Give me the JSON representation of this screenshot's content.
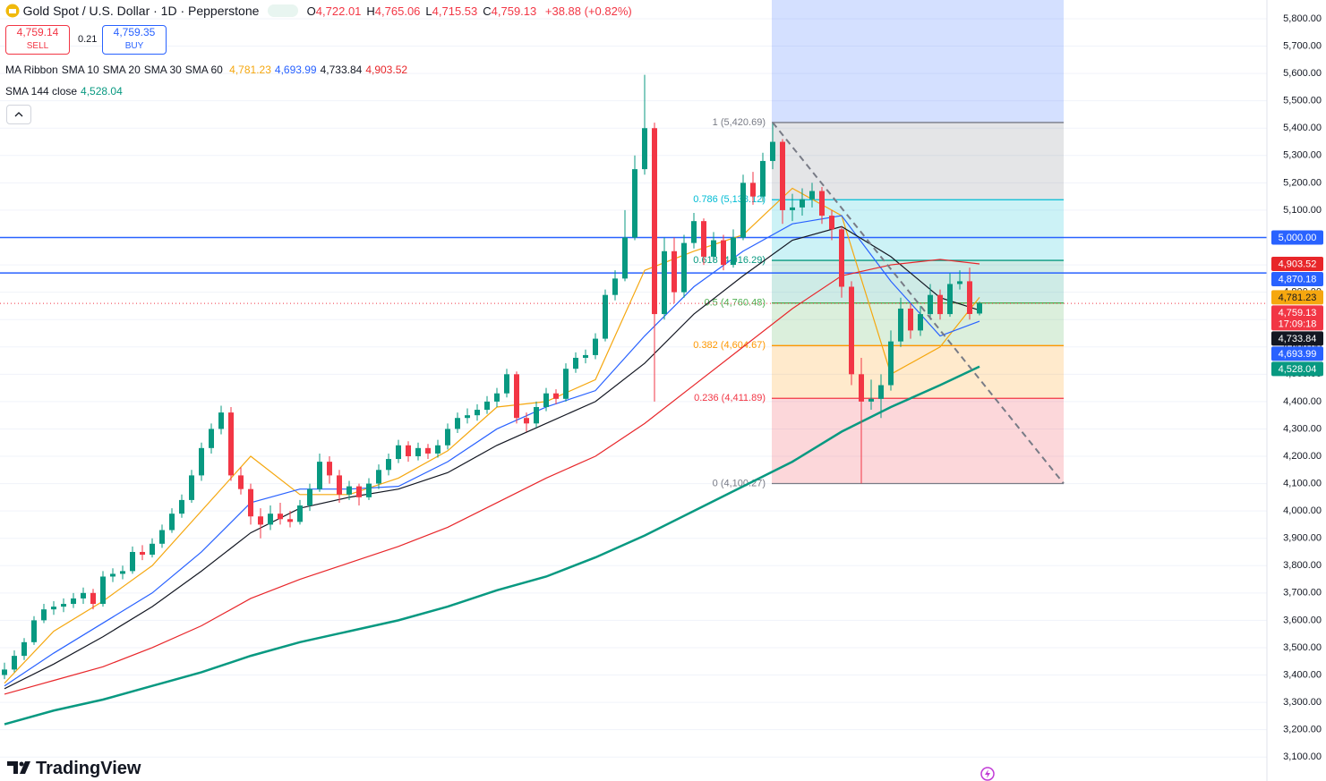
{
  "header": {
    "title": "Gold Spot / U.S. Dollar · 1D · Pepperstone",
    "ohlc": [
      {
        "key": "O",
        "value": "4,722.01"
      },
      {
        "key": "H",
        "value": "4,765.06"
      },
      {
        "key": "L",
        "value": "4,715.53"
      },
      {
        "key": "C",
        "value": "4,759.13"
      }
    ],
    "change": "+38.88 (+0.82%)",
    "sell": {
      "price": "4,759.14",
      "label": "SELL"
    },
    "spread": "0.21",
    "buy": {
      "price": "4,759.35",
      "label": "BUY"
    },
    "ribbon_title": "MA Ribbon",
    "brand": "TradingView"
  },
  "chart_data": {
    "type": "candlestick",
    "ylim": [
      3012.3,
      5868.7
    ],
    "yticks": [
      {
        "value": 3100,
        "label": "3,100.00"
      },
      {
        "value": 3200,
        "label": "3,200.00"
      },
      {
        "value": 3300,
        "label": "3,300.00"
      },
      {
        "value": 3400,
        "label": "3,400.00"
      },
      {
        "value": 3500,
        "label": "3,500.00"
      },
      {
        "value": 3600,
        "label": "3,600.00"
      },
      {
        "value": 3700,
        "label": "3,700.00"
      },
      {
        "value": 3800,
        "label": "3,800.00"
      },
      {
        "value": 3900,
        "label": "3,900.00"
      },
      {
        "value": 4000,
        "label": "4,000.00"
      },
      {
        "value": 4100,
        "label": "4,100.00"
      },
      {
        "value": 4200,
        "label": "4,200.00"
      },
      {
        "value": 4300,
        "label": "4,300.00"
      },
      {
        "value": 4400,
        "label": "4,400.00"
      },
      {
        "value": 4500,
        "label": "4,500.00"
      },
      {
        "value": 4600,
        "label": "4,600.00"
      },
      {
        "value": 4700,
        "label": "4,700.00"
      },
      {
        "value": 4800,
        "label": "4,800.00"
      },
      {
        "value": 4900,
        "label": "4,900.00"
      },
      {
        "value": 5000,
        "label": "5,000.00"
      },
      {
        "value": 5100,
        "label": "5,100.00"
      },
      {
        "value": 5200,
        "label": "5,200.00"
      },
      {
        "value": 5300,
        "label": "5,300.00"
      },
      {
        "value": 5400,
        "label": "5,400.00"
      },
      {
        "value": 5500,
        "label": "5,500.00"
      },
      {
        "value": 5600,
        "label": "5,600.00"
      },
      {
        "value": 5700,
        "label": "5,700.00"
      },
      {
        "value": 5800,
        "label": "5,800.00"
      }
    ],
    "grid": true,
    "up_color": "#089981",
    "down_color": "#f23645",
    "candles": [
      [
        3400,
        3445,
        3385,
        3420
      ],
      [
        3420,
        3490,
        3410,
        3470
      ],
      [
        3470,
        3535,
        3455,
        3520
      ],
      [
        3520,
        3615,
        3510,
        3600
      ],
      [
        3600,
        3660,
        3590,
        3640
      ],
      [
        3640,
        3670,
        3620,
        3650
      ],
      [
        3650,
        3680,
        3630,
        3660
      ],
      [
        3660,
        3700,
        3645,
        3680
      ],
      [
        3680,
        3720,
        3660,
        3700
      ],
      [
        3700,
        3715,
        3640,
        3660
      ],
      [
        3660,
        3780,
        3650,
        3760
      ],
      [
        3760,
        3790,
        3740,
        3770
      ],
      [
        3770,
        3800,
        3750,
        3780
      ],
      [
        3780,
        3870,
        3770,
        3850
      ],
      [
        3850,
        3875,
        3820,
        3840
      ],
      [
        3840,
        3900,
        3830,
        3880
      ],
      [
        3880,
        3950,
        3865,
        3930
      ],
      [
        3930,
        4010,
        3920,
        3990
      ],
      [
        3990,
        4060,
        3975,
        4040
      ],
      [
        4040,
        4150,
        4030,
        4130
      ],
      [
        4130,
        4250,
        4110,
        4230
      ],
      [
        4230,
        4320,
        4210,
        4300
      ],
      [
        4300,
        4385,
        4280,
        4360
      ],
      [
        4360,
        4380,
        4110,
        4130
      ],
      [
        4130,
        4160,
        4060,
        4080
      ],
      [
        4080,
        4100,
        3950,
        3980
      ],
      [
        3980,
        4010,
        3900,
        3950
      ],
      [
        3950,
        4020,
        3930,
        3990
      ],
      [
        3990,
        4030,
        3950,
        3970
      ],
      [
        3970,
        4000,
        3940,
        3960
      ],
      [
        3960,
        4040,
        3950,
        4020
      ],
      [
        4020,
        4100,
        4000,
        4080
      ],
      [
        4080,
        4210,
        4070,
        4180
      ],
      [
        4180,
        4200,
        4100,
        4130
      ],
      [
        4130,
        4150,
        4030,
        4060
      ],
      [
        4060,
        4110,
        4040,
        4090
      ],
      [
        4090,
        4100,
        4020,
        4050
      ],
      [
        4050,
        4120,
        4040,
        4100
      ],
      [
        4100,
        4170,
        4080,
        4150
      ],
      [
        4150,
        4210,
        4130,
        4190
      ],
      [
        4190,
        4260,
        4175,
        4240
      ],
      [
        4240,
        4255,
        4180,
        4200
      ],
      [
        4200,
        4250,
        4185,
        4230
      ],
      [
        4230,
        4245,
        4190,
        4210
      ],
      [
        4210,
        4260,
        4195,
        4240
      ],
      [
        4240,
        4320,
        4225,
        4300
      ],
      [
        4300,
        4360,
        4285,
        4340
      ],
      [
        4340,
        4375,
        4320,
        4350
      ],
      [
        4350,
        4390,
        4330,
        4370
      ],
      [
        4370,
        4420,
        4355,
        4400
      ],
      [
        4400,
        4450,
        4380,
        4430
      ],
      [
        4430,
        4520,
        4415,
        4500
      ],
      [
        4500,
        4510,
        4320,
        4340
      ],
      [
        4340,
        4360,
        4290,
        4320
      ],
      [
        4320,
        4400,
        4305,
        4380
      ],
      [
        4380,
        4450,
        4365,
        4430
      ],
      [
        4430,
        4445,
        4390,
        4410
      ],
      [
        4410,
        4540,
        4400,
        4520
      ],
      [
        4520,
        4580,
        4505,
        4560
      ],
      [
        4560,
        4590,
        4540,
        4570
      ],
      [
        4570,
        4650,
        4555,
        4630
      ],
      [
        4630,
        4810,
        4620,
        4790
      ],
      [
        4790,
        4880,
        4770,
        4850
      ],
      [
        4850,
        5100,
        4840,
        5000
      ],
      [
        5000,
        5300,
        4990,
        5250
      ],
      [
        5250,
        5595,
        5230,
        5400
      ],
      [
        5400,
        5420,
        4400,
        4720
      ],
      [
        4720,
        5000,
        4700,
        4950
      ],
      [
        4950,
        5000,
        4760,
        4800
      ],
      [
        4800,
        5010,
        4780,
        4980
      ],
      [
        4980,
        5090,
        4960,
        5060
      ],
      [
        5060,
        5070,
        4900,
        4930
      ],
      [
        4930,
        5020,
        4910,
        4990
      ],
      [
        4990,
        5010,
        4880,
        4900
      ],
      [
        4900,
        5030,
        4890,
        5000
      ],
      [
        5000,
        5230,
        4990,
        5200
      ],
      [
        5200,
        5240,
        5120,
        5150
      ],
      [
        5150,
        5310,
        5130,
        5280
      ],
      [
        5280,
        5420.69,
        5250,
        5350
      ],
      [
        5350,
        5360,
        5050,
        5100
      ],
      [
        5100,
        5160,
        5060,
        5110
      ],
      [
        5110,
        5180,
        5080,
        5140
      ],
      [
        5140,
        5200,
        5110,
        5170
      ],
      [
        5170,
        5185,
        5050,
        5080
      ],
      [
        5080,
        5100,
        4990,
        5030
      ],
      [
        5030,
        5040,
        4780,
        4820
      ],
      [
        4820,
        4840,
        4460,
        4500
      ],
      [
        4500,
        4560,
        4100.27,
        4400
      ],
      [
        4400,
        4480,
        4370,
        4410
      ],
      [
        4410,
        4500,
        4340,
        4460
      ],
      [
        4460,
        4660,
        4440,
        4620
      ],
      [
        4620,
        4780,
        4600,
        4740
      ],
      [
        4740,
        4760,
        4630,
        4660
      ],
      [
        4660,
        4750,
        4640,
        4720
      ],
      [
        4720,
        4830,
        4700,
        4790
      ],
      [
        4790,
        4810,
        4700,
        4720
      ],
      [
        4720,
        4870,
        4710,
        4830
      ],
      [
        4830,
        4880,
        4810,
        4840
      ],
      [
        4840,
        4890,
        4700,
        4720.25
      ],
      [
        4722.01,
        4765.06,
        4715.53,
        4759.13
      ]
    ],
    "ma_x": [
      0,
      5,
      10,
      15,
      20,
      25,
      30,
      35,
      40,
      45,
      50,
      55,
      60,
      65,
      70,
      75,
      80,
      85,
      90,
      95,
      99
    ],
    "series": [
      {
        "name": "SMA 10",
        "color": "#f5a70f",
        "width": 1.2,
        "last_label": "4,781.23",
        "values": [
          3370,
          3560,
          3670,
          3800,
          4000,
          4200,
          4060,
          4060,
          4120,
          4220,
          4380,
          4400,
          4480,
          4880,
          4950,
          5010,
          5180,
          5080,
          4500,
          4600,
          4781.23
        ]
      },
      {
        "name": "SMA 20",
        "color": "#2962ff",
        "width": 1.2,
        "last_label": "4,693.99",
        "values": [
          3360,
          3480,
          3590,
          3700,
          3850,
          4030,
          4080,
          4080,
          4090,
          4180,
          4300,
          4380,
          4440,
          4640,
          4820,
          4950,
          5050,
          5080,
          4840,
          4640,
          4693.99
        ]
      },
      {
        "name": "SMA 30",
        "color": "#131722",
        "width": 1.2,
        "last_label": "4,733.84",
        "values": [
          3350,
          3440,
          3540,
          3650,
          3780,
          3920,
          4010,
          4050,
          4080,
          4140,
          4240,
          4320,
          4400,
          4540,
          4720,
          4860,
          4990,
          5040,
          4930,
          4780,
          4733.84
        ]
      },
      {
        "name": "SMA 60",
        "color": "#e8262a",
        "width": 1.2,
        "last_label": "4,903.52",
        "values": [
          3330,
          3380,
          3430,
          3500,
          3580,
          3680,
          3750,
          3810,
          3870,
          3940,
          4030,
          4120,
          4200,
          4320,
          4460,
          4600,
          4740,
          4860,
          4900,
          4920,
          4903.52
        ]
      },
      {
        "name": "SMA 144 close",
        "color": "#089981",
        "width": 2.5,
        "last_label": "4,528.04",
        "values": [
          3220,
          3270,
          3310,
          3360,
          3410,
          3470,
          3520,
          3560,
          3600,
          3650,
          3710,
          3760,
          3830,
          3910,
          4000,
          4090,
          4180,
          4290,
          4380,
          4460,
          4528.04
        ]
      }
    ],
    "fib_levels": [
      {
        "value": 5420.69,
        "label": "1 (5,420.69)",
        "color": "#787b86"
      },
      {
        "value": 5138.12,
        "label": "0.786 (5,138.12)",
        "color": "#00bcd4"
      },
      {
        "value": 4916.29,
        "label": "0.618 (4,916.29)",
        "color": "#089981"
      },
      {
        "value": 4760.48,
        "label": "0.5 (4,760.48)",
        "color": "#4caf50"
      },
      {
        "value": 4604.67,
        "label": "0.382 (4,604.67)",
        "color": "#ff9800"
      },
      {
        "value": 4411.89,
        "label": "0.236 (4,411.89)",
        "color": "#f23645"
      },
      {
        "value": 4100.27,
        "label": "0 (4,100.27)",
        "color": "#787b86"
      }
    ],
    "hlines": [
      {
        "value": 5000,
        "label": "5,000.00",
        "color": "#2962ff"
      },
      {
        "value": 4870.18,
        "label": "4,870.18",
        "color": "#2962ff"
      }
    ],
    "last_price": {
      "value": 4759.13,
      "label": "4,759.13",
      "countdown": "17:09:18",
      "color": "#f23645"
    }
  }
}
